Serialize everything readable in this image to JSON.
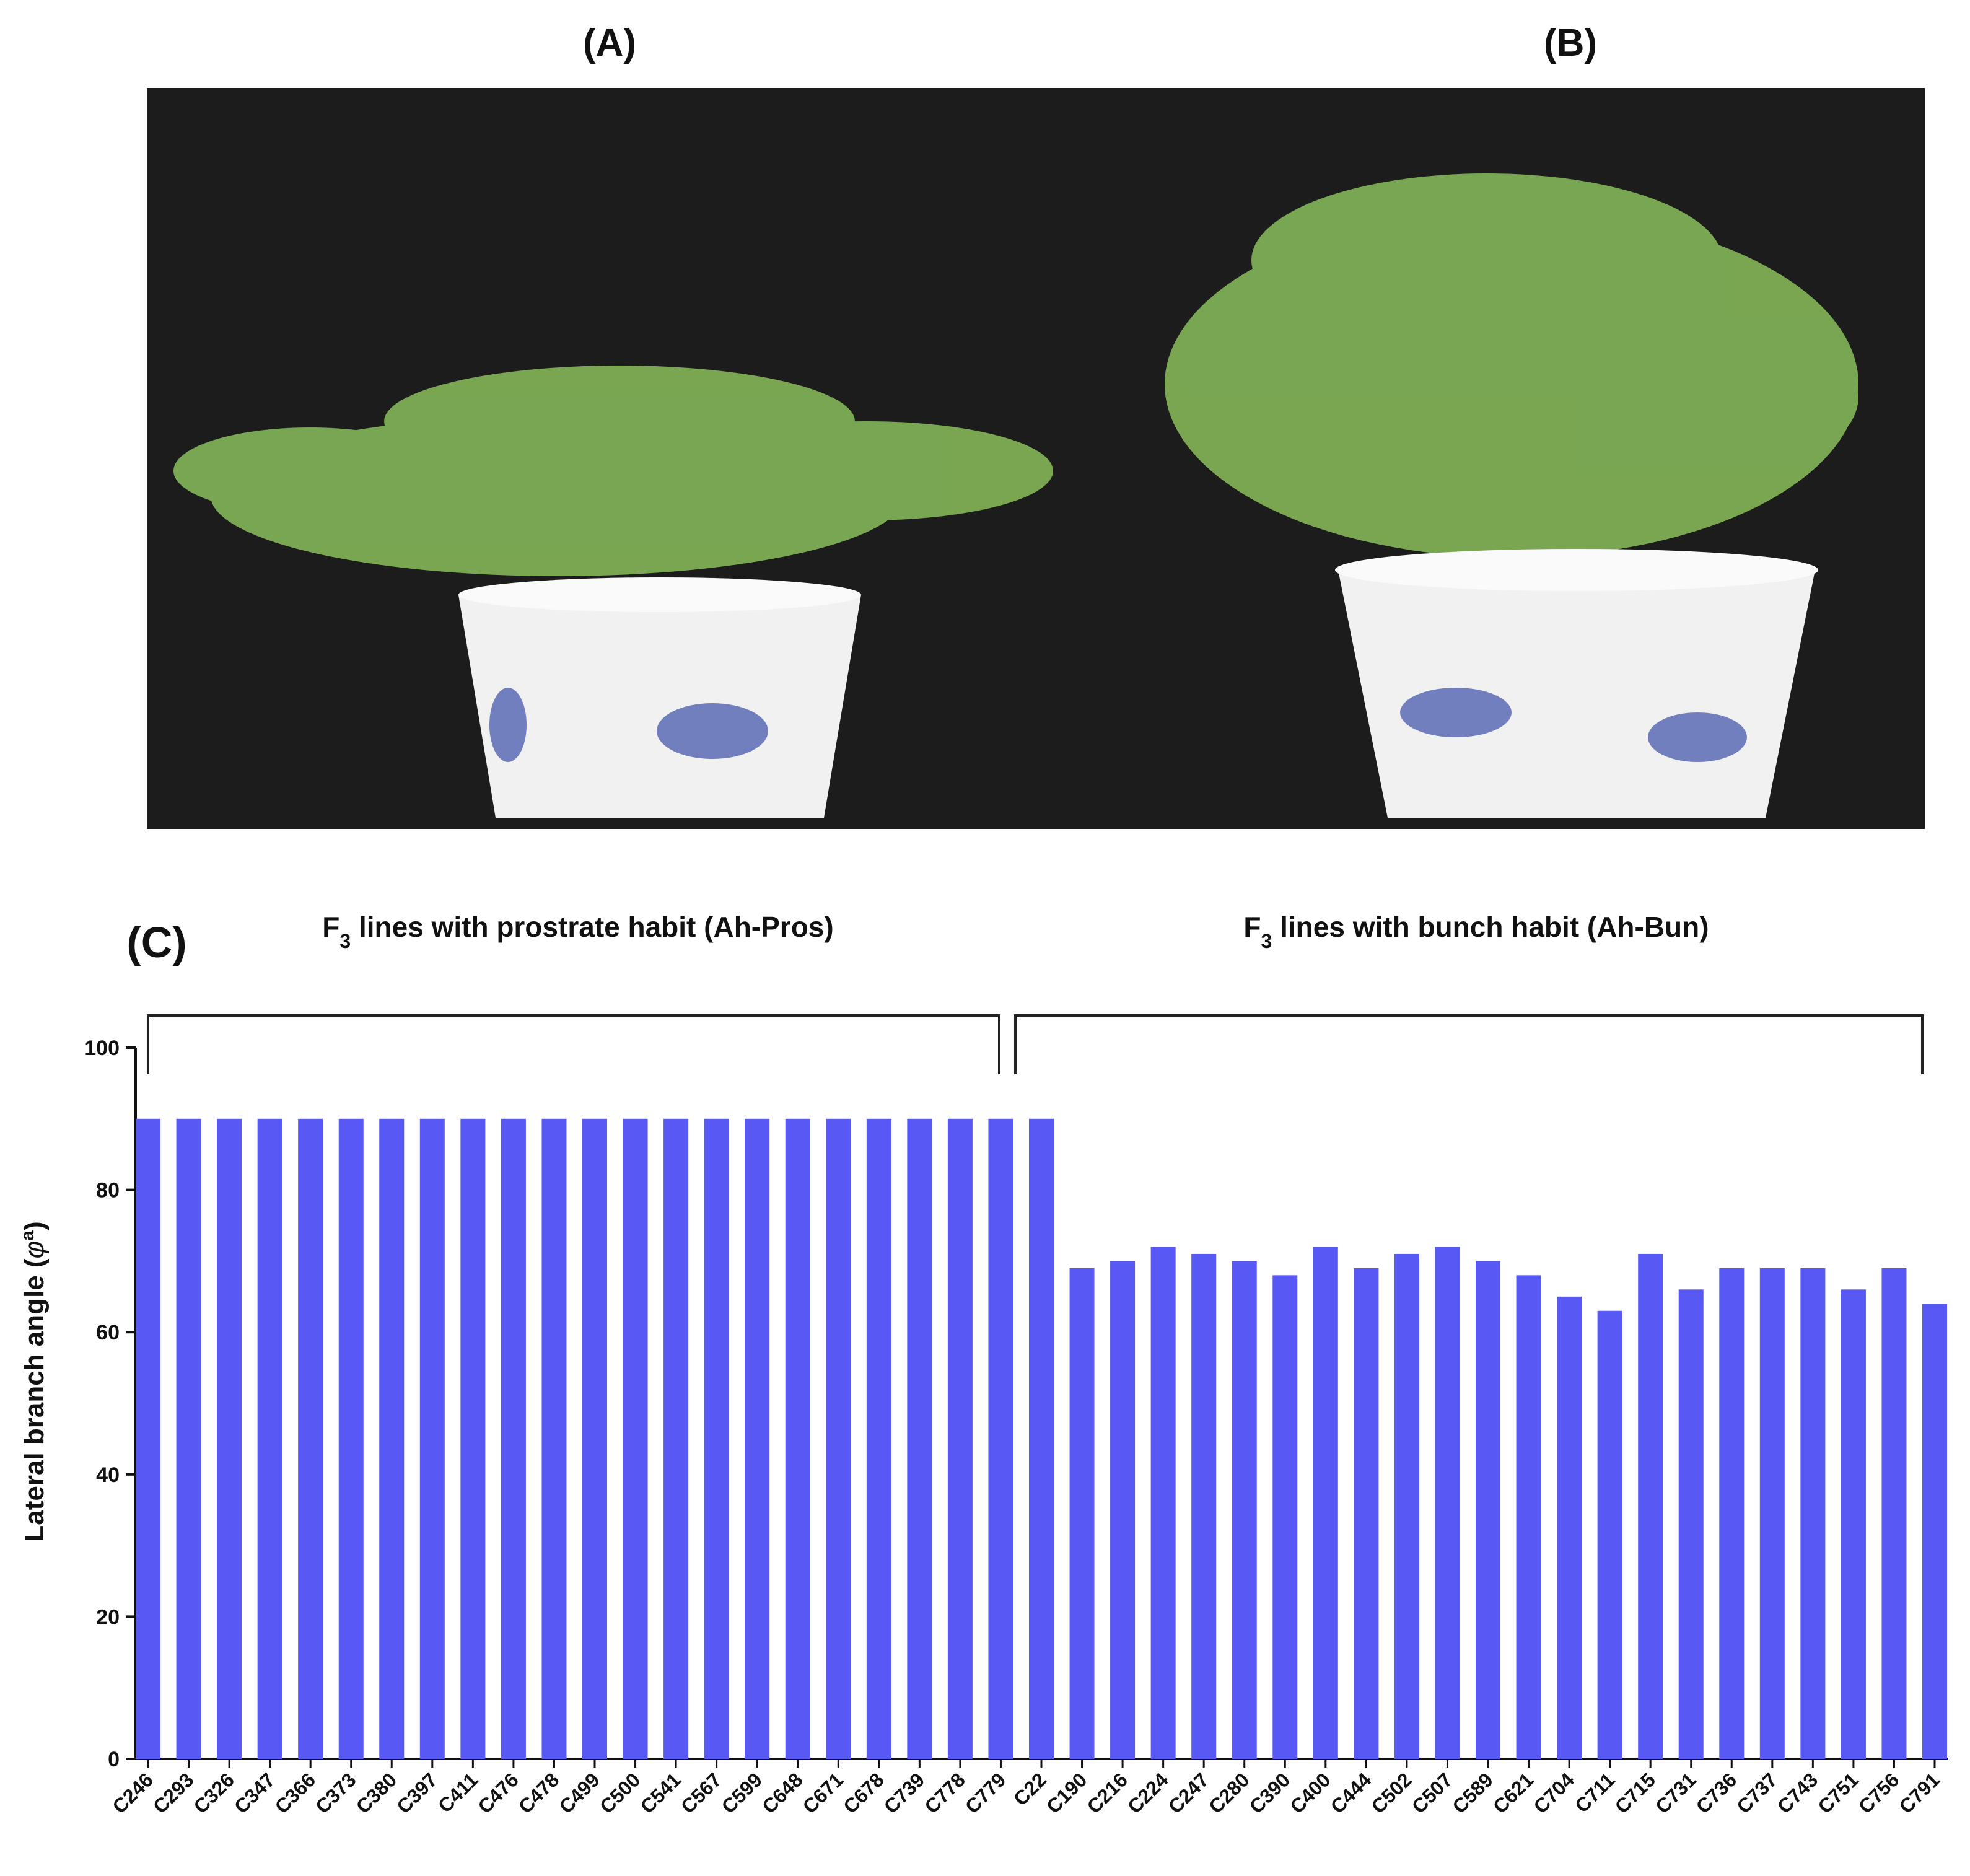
{
  "panels": [
    "(A)",
    "(B)",
    "(C)"
  ],
  "chart_data": {
    "type": "bar",
    "groups": [
      [
        "F",
        "3",
        " lines with prostrate habit (Ah-Pros)"
      ],
      [
        "F",
        "3",
        " lines with bunch habit (Ah-Bun)"
      ]
    ],
    "y_label": [
      "Lateral branch angle (",
      "φ",
      "a",
      ")"
    ],
    "categories": [
      "C246",
      "C293",
      "C326",
      "C347",
      "C366",
      "C373",
      "C380",
      "C397",
      "C411",
      "C476",
      "C478",
      "C499",
      "C500",
      "C541",
      "C567",
      "C599",
      "C648",
      "C671",
      "C678",
      "C739",
      "C778",
      "C779",
      "C22",
      "C190",
      "C216",
      "C224",
      "C247",
      "C280",
      "C390",
      "C400",
      "C444",
      "C502",
      "C507",
      "C589",
      "C621",
      "C704",
      "C711",
      "C715",
      "C731",
      "C736",
      "C737",
      "C743",
      "C751",
      "C756",
      "C791"
    ],
    "values": [
      90,
      90,
      90,
      90,
      90,
      90,
      90,
      90,
      90,
      90,
      90,
      90,
      90,
      90,
      90,
      90,
      90,
      90,
      90,
      90,
      90,
      90,
      90,
      69,
      70,
      72,
      71,
      70,
      68,
      72,
      69,
      71,
      72,
      70,
      68,
      65,
      63,
      71,
      66,
      69,
      69,
      69,
      66,
      69,
      64
    ],
    "color": "#5858f5",
    "ylim": [
      0,
      100
    ],
    "yticks": [
      0,
      20,
      40,
      60,
      80,
      100
    ]
  }
}
